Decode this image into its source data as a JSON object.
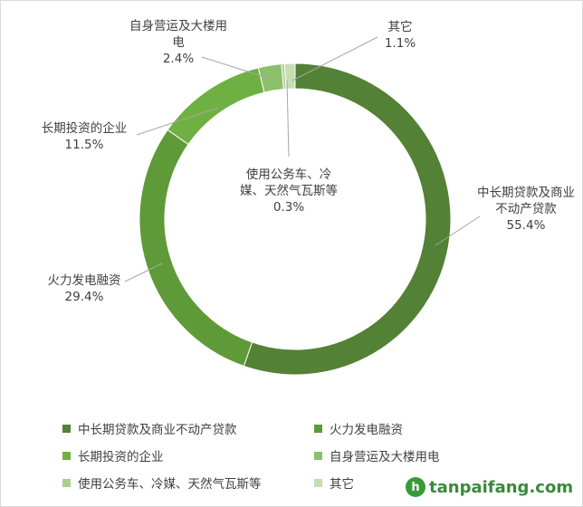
{
  "chart_data": {
    "type": "donut",
    "categories": [
      "中长期贷款及商业不动产贷款",
      "火力发电融资",
      "长期投资的企业",
      "自身营运及大楼用电",
      "使用公务车、冷媒、天然气瓦斯等",
      "其它"
    ],
    "values": [
      55.4,
      29.4,
      11.5,
      2.4,
      0.3,
      1.1
    ],
    "value_labels": [
      "55.4%",
      "29.4%",
      "11.5%",
      "2.4%",
      "0.3%",
      "1.1%"
    ],
    "colors": [
      "#538135",
      "#5f9a38",
      "#6fb043",
      "#8cbf6a",
      "#a9d08e",
      "#c5dfb3"
    ],
    "legend": "bottom"
  },
  "watermark": "tanpaifang.com"
}
